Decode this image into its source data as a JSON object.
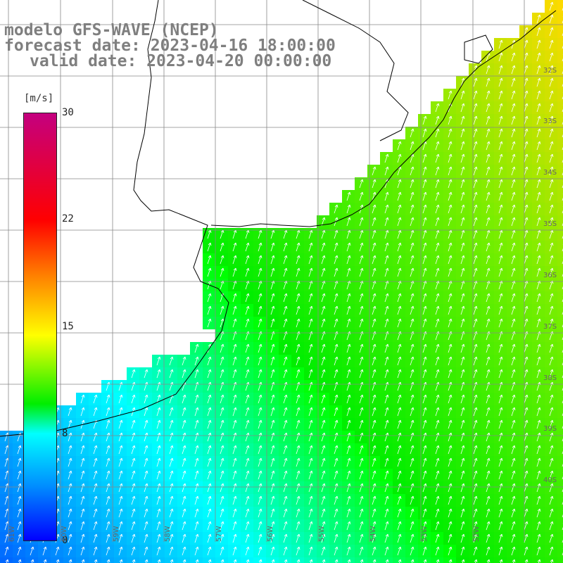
{
  "title": {
    "line1": "modelo GFS-WAVE (NCEP)",
    "line2": "forecast date: 2023-04-16 18:00:00",
    "line3": "valid date: 2023-04-20 00:00:00"
  },
  "colorbar": {
    "unit": "[m/s]",
    "ticks": [
      "30",
      "22",
      "15",
      "8",
      "0"
    ],
    "colors": [
      "#c4007f",
      "#ff0000",
      "#ff8000",
      "#ffff00",
      "#00ee00",
      "#00ffff",
      "#0090ff",
      "#0000ff"
    ]
  },
  "latitude_labels": [
    "32S",
    "33S",
    "34S",
    "35S",
    "36S",
    "37S",
    "38S",
    "39S",
    "40S"
  ],
  "longitude_labels": [
    "61W",
    "60W",
    "59W",
    "58W",
    "57W",
    "56W",
    "55W",
    "54W",
    "53W",
    "52W"
  ],
  "map": {
    "land_color": "#ffffff",
    "grid_color": "#888888",
    "coast_color": "#000000",
    "arrow_color": "#ffffff"
  }
}
